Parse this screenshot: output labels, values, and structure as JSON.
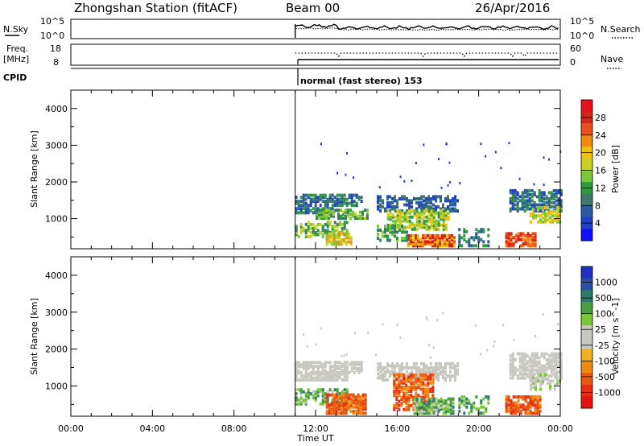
{
  "header": {
    "station": "Zhongshan Station (fitACF)",
    "beam": "Beam 00",
    "date": "26/Apr/2016"
  },
  "strip": {
    "nsky_label": "N.Sky",
    "nsky_top": "10^5",
    "nsky_bottom": "10^0",
    "nsearch_label": "N.Search",
    "nsearch_top": "10^5",
    "nsearch_bottom": "10^0",
    "freq_label": "Freq.",
    "freq_unit": "[MHz]",
    "freq_top": "18",
    "freq_bottom": "8",
    "nave_label": "Nave",
    "nave_top": "60",
    "nave_bottom": "0",
    "cpid_label": "CPID",
    "cpid_text": "normal (fast stereo) 153"
  },
  "axes": {
    "xlabel": "Time UT",
    "ylabel": "Slant Range [km]"
  },
  "chart_data": [
    {
      "type": "heatmap",
      "name": "power",
      "colorbar_label": "Power [dB]",
      "colorbar_ticks": [
        "28",
        "24",
        "20",
        "16",
        "12",
        "8",
        "4"
      ],
      "colorbar_colors": [
        "#e8101a",
        "#d02818",
        "#e8501a",
        "#f08a10",
        "#f0c010",
        "#c8d020",
        "#7ac838",
        "#2e9a3e",
        "#3d7a6a",
        "#2a5aa0",
        "#2040c8",
        "#1010ff"
      ],
      "x_ticks": [
        "00:00",
        "04:00",
        "08:00",
        "12:00",
        "16:00",
        "20:00",
        "00:00"
      ],
      "x_range_hours": [
        0,
        24
      ],
      "y_ticks": [
        1000,
        2000,
        3000,
        4000
      ],
      "y_range_km": [
        180,
        4500
      ],
      "data_start_hour": 11.0
    },
    {
      "type": "heatmap",
      "name": "velocity",
      "colorbar_label": "Velocity [m s^-1]",
      "colorbar_ticks": [
        "1000",
        "500",
        "100",
        "25",
        "-25",
        "-100",
        "-500",
        "-1000"
      ],
      "colorbar_colors": [
        "#2030c0",
        "#2850a8",
        "#2e7a6a",
        "#4aa040",
        "#7ac838",
        "#c8c8c0",
        "#c8c8c0",
        "#f0b020",
        "#f08a10",
        "#e85a10",
        "#e83010",
        "#e81010"
      ],
      "x_ticks": [
        "00:00",
        "04:00",
        "08:00",
        "12:00",
        "16:00",
        "20:00",
        "00:00"
      ],
      "x_range_hours": [
        0,
        24
      ],
      "y_ticks": [
        1000,
        2000,
        3000,
        4000
      ],
      "y_range_km": [
        180,
        4500
      ],
      "data_start_hour": 11.0
    }
  ]
}
